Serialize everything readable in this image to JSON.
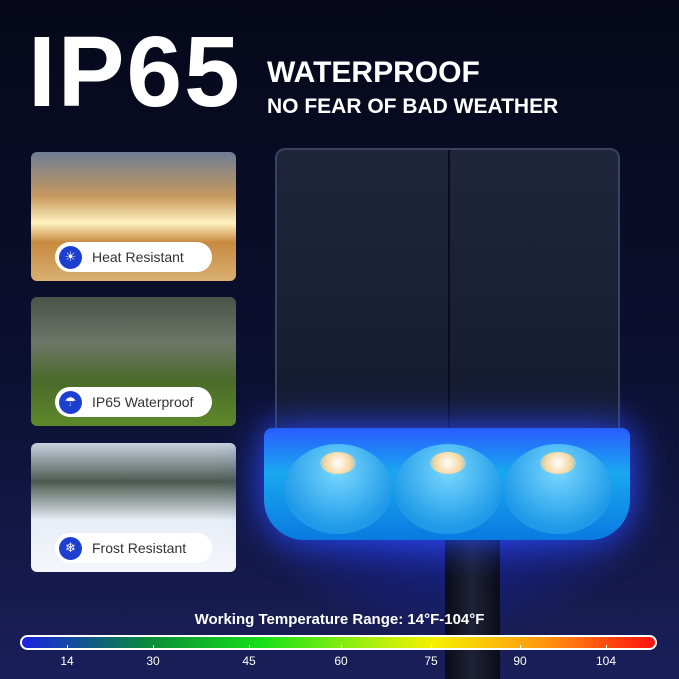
{
  "headline": {
    "rating": "IP65",
    "title": "WATERPROOF",
    "subtitle": "NO FEAR OF BAD WEATHER"
  },
  "features": [
    {
      "label": "Heat Resistant",
      "icon": "sun-icon"
    },
    {
      "label": "IP65 Waterproof",
      "icon": "umbrella-rain-icon"
    },
    {
      "label": "Frost Resistant",
      "icon": "snowflake-icon"
    }
  ],
  "temperature": {
    "title": "Working Temperature Range: 14°F-104°F",
    "ticks": [
      "14",
      "30",
      "45",
      "60",
      "75",
      "90",
      "104"
    ],
    "gradient_colors": [
      "#1a22e0",
      "#0a8a3a",
      "#18e018",
      "#f6f000",
      "#ff9a10",
      "#ff1010"
    ]
  },
  "accent": "#1c3fd0"
}
